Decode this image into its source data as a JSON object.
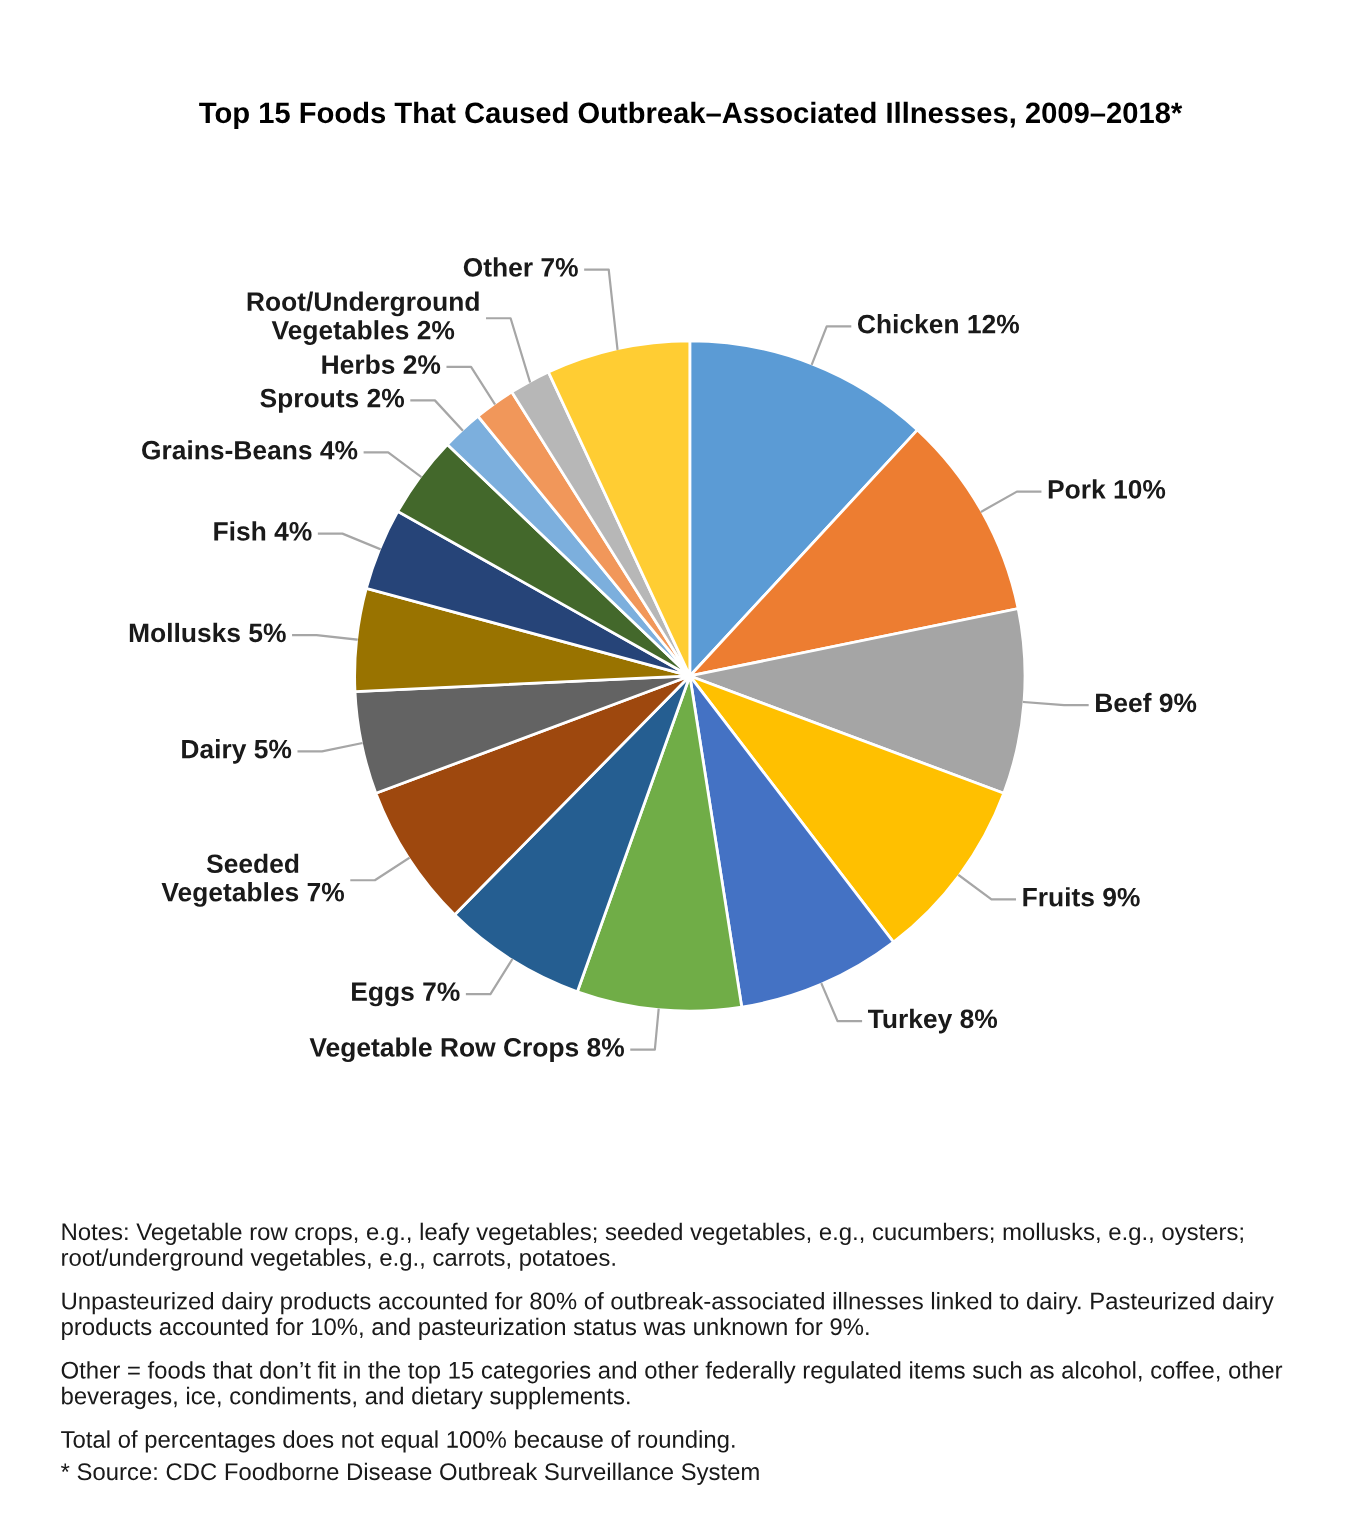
{
  "chart_data": {
    "type": "pie",
    "title": "Top 15 Foods That Caused Outbreak–Associated Illnesses, 2009–2018*",
    "categories": [
      "Chicken",
      "Pork",
      "Beef",
      "Fruits",
      "Turkey",
      "Vegetable Row Crops",
      "Eggs",
      "Seeded\nVegetables",
      "Dairy",
      "Mollusks",
      "Fish",
      "Grains-Beans",
      "Sprouts",
      "Herbs",
      "Root/Underground\nVegetables",
      "Other"
    ],
    "values": [
      12,
      10,
      9,
      9,
      8,
      8,
      7,
      7,
      5,
      5,
      4,
      4,
      2,
      2,
      2,
      7
    ],
    "value_labels": [
      "12%",
      "10%",
      "9%",
      "9%",
      "8%",
      "8%",
      "7%",
      "7%",
      "5%",
      "5%",
      "4%",
      "4%",
      "2%",
      "2%",
      "2%",
      "7%"
    ],
    "colors": [
      "#5b9bd5",
      "#ed7d31",
      "#a5a5a5",
      "#ffc000",
      "#4472c4",
      "#70ad47",
      "#255e91",
      "#9e480e",
      "#636363",
      "#997300",
      "#264478",
      "#43682b",
      "#7cafdd",
      "#f1975a",
      "#b7b7b7",
      "#ffcd33"
    ],
    "annotations": [
      "Notes: Vegetable row crops, e.g., leafy vegetables; seeded vegetables, e.g., cucumbers; mollusks, e.g., oysters; root/underground vegetables, e.g., carrots, potatoes.",
      "Unpasteurized dairy products accounted for 80% of outbreak-associated illnesses linked to dairy. Pasteurized dairy products accounted for 10%, and pasteurization status was unknown for 9%.",
      "Other = foods that don’t fit in the top 15 categories and other federally regulated items such as alcohol, coffee, other beverages, ice, condiments, and dietary supplements.",
      "Total of percentages does not equal 100% because of rounding.",
      "* Source: CDC Foodborne Disease Outbreak Surveillance System"
    ]
  }
}
